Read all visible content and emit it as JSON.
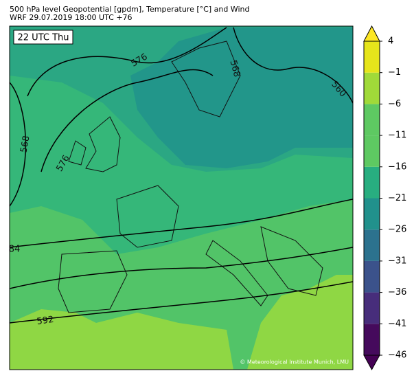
{
  "header": {
    "title": "500 hPa level Geopotential [gpdm], Temperature [°C] and Wind",
    "subtitle": "WRF 29.07.2019 18:00 UTC +76"
  },
  "map": {
    "time_label": "22 UTC Thu",
    "contour_labels": [
      "576",
      "568",
      "560",
      "568",
      "576",
      "84",
      "592"
    ],
    "copyright": "© Meteorological Institute Munich, LMU"
  },
  "colorbar": {
    "ticks": [
      {
        "value": -46,
        "label": "−46"
      },
      {
        "value": -41,
        "label": "−41"
      },
      {
        "value": -36,
        "label": "−36"
      },
      {
        "value": -31,
        "label": "−31"
      },
      {
        "value": -26,
        "label": "−26"
      },
      {
        "value": -21,
        "label": "−21"
      },
      {
        "value": -16,
        "label": "−16"
      },
      {
        "value": -11,
        "label": "−11"
      },
      {
        "value": -6,
        "label": "−6"
      },
      {
        "value": -1,
        "label": "−1"
      },
      4
    ],
    "colors": [
      "#450a5c",
      "#472d7b",
      "#3b528b",
      "#2c728e",
      "#21918c",
      "#28ae80",
      "#5ec962",
      "#5ec962",
      "#a0da39",
      "#e6e51b"
    ],
    "under_color": "#440154",
    "over_color": "#fde725"
  }
}
